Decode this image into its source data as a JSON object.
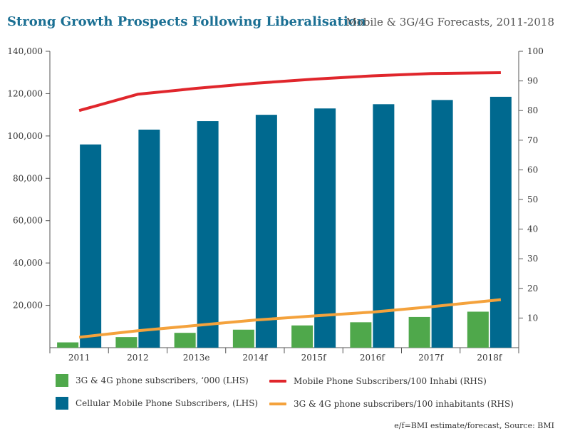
{
  "title": "Strong Growth Prospects Following Liberalisation",
  "subtitle": "Mobile & 3G/4G Forecasts, 2011-2018",
  "source": "e/f=BMI estimate/forecast, Source: BMI",
  "colors": {
    "title": "#1a6f93",
    "green": "#4fa84b",
    "blue": "#00698f",
    "red": "#e0262c",
    "orange": "#f4a23c",
    "axis": "#555555"
  },
  "chart_data": {
    "type": "bar",
    "categories": [
      "2011",
      "2012",
      "2013e",
      "2014f",
      "2015f",
      "2016f",
      "2017f",
      "2018f"
    ],
    "ylim_left": [
      0,
      140000
    ],
    "yticks_left": [
      20000,
      40000,
      60000,
      80000,
      100000,
      120000,
      140000
    ],
    "ytick_labels_left": [
      "20,000",
      "40,000",
      "60,000",
      "80,000",
      "100,000",
      "120,000",
      "140,000"
    ],
    "ylim_right": [
      0,
      100
    ],
    "yticks_right": [
      10,
      20,
      30,
      40,
      50,
      60,
      70,
      80,
      90,
      100
    ],
    "ytick_labels_right": [
      "10",
      "20",
      "30",
      "40",
      "50",
      "60",
      "70",
      "80",
      "90",
      "100"
    ],
    "series": [
      {
        "name": "3G & 4G phone subscribers, ‘000 (LHS)",
        "kind": "bar",
        "axis": "left",
        "color": "#4fa84b",
        "values": [
          2500,
          5000,
          7000,
          8500,
          10500,
          12000,
          14500,
          17000
        ]
      },
      {
        "name": "Cellular Mobile Phone Subscribers, (LHS)",
        "kind": "bar",
        "axis": "left",
        "color": "#00698f",
        "values": [
          96000,
          103000,
          107000,
          110000,
          113000,
          115000,
          117000,
          118500
        ]
      },
      {
        "name": "Mobile Phone Subscribers/100 Inhabi (RHS)",
        "kind": "line",
        "axis": "right",
        "color": "#e0262c",
        "values": [
          80,
          85.5,
          87.5,
          89.2,
          90.6,
          91.7,
          92.5,
          92.8
        ]
      },
      {
        "name": "3G & 4G phone subscribers/100 inhabitants (RHS)",
        "kind": "line",
        "axis": "right",
        "color": "#f4a23c",
        "values": [
          3.5,
          5.7,
          7.5,
          9.3,
          10.7,
          12,
          13.8,
          16.2
        ]
      }
    ]
  }
}
